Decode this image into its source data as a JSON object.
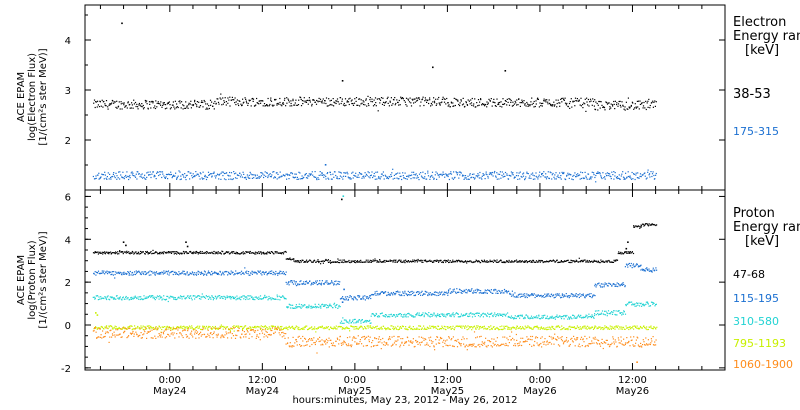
{
  "chart_data": [
    {
      "type": "scatter",
      "panel": "electron",
      "ylabel_lines": [
        "ACE EPAM",
        "log(Electron Flux)",
        "[1/(cm²s ster MeV)]"
      ],
      "yticks": [
        2,
        3,
        4
      ],
      "ylim": [
        1.0,
        4.7
      ],
      "legend_title_lines": [
        "Electron",
        "Energy ran",
        "[keV]"
      ],
      "series": [
        {
          "name": "38-53",
          "color": "#000000",
          "base": 2.75,
          "noise": 0.09,
          "segments": [
            [
              -10,
              6,
              2.72
            ],
            [
              6,
              36,
              2.78
            ],
            [
              36,
              55,
              2.76
            ],
            [
              55,
              63,
              2.7
            ]
          ],
          "outliers": [
            [
              -6.3,
              4.35
            ],
            [
              22.3,
              3.2
            ],
            [
              34.0,
              3.47
            ],
            [
              43.4,
              3.4
            ]
          ]
        },
        {
          "name": "175-315",
          "color": "#1a6fd1",
          "base": 1.3,
          "noise": 0.08,
          "segments": [
            [
              -10,
              63,
              1.3
            ]
          ],
          "outliers": [
            [
              20.1,
              1.52
            ]
          ]
        }
      ]
    },
    {
      "type": "scatter",
      "panel": "proton",
      "ylabel_lines": [
        "ACE EPAM",
        "log(Proton Flux)",
        "[1/(cm²s ster MeV)]"
      ],
      "yticks": [
        -2,
        0,
        2,
        4,
        6
      ],
      "ylim": [
        -2.1,
        6.3
      ],
      "legend_title_lines": [
        "Proton",
        "Energy ran",
        "[keV]"
      ],
      "series": [
        {
          "name": "47-68",
          "color": "#000000",
          "noise": 0.06,
          "segments": [
            [
              -10,
              15,
              3.4
            ],
            [
              15,
              16,
              3.1
            ],
            [
              16,
              58,
              3.0
            ],
            [
              58,
              60,
              3.4
            ],
            [
              60,
              61,
              4.6
            ],
            [
              61,
              63,
              4.7
            ]
          ],
          "outliers": [
            [
              -6.1,
              3.9
            ],
            [
              -5.8,
              3.75
            ],
            [
              2.0,
              3.9
            ],
            [
              2.2,
              3.7
            ],
            [
              22.2,
              5.9
            ],
            [
              59.3,
              3.9
            ],
            [
              59.1,
              3.6
            ]
          ]
        },
        {
          "name": "115-195",
          "color": "#1a6fd1",
          "noise": 0.1,
          "segments": [
            [
              -10,
              15,
              2.45
            ],
            [
              15,
              22,
              2.0
            ],
            [
              22,
              26,
              1.3
            ],
            [
              26,
              36,
              1.5
            ],
            [
              36,
              44,
              1.6
            ],
            [
              44,
              55,
              1.4
            ],
            [
              55,
              59,
              1.9
            ],
            [
              59,
              61,
              2.8
            ],
            [
              61,
              63,
              2.6
            ]
          ],
          "outliers": [
            [
              22.3,
              1.1
            ],
            [
              22.5,
              1.7
            ]
          ]
        },
        {
          "name": "310-580",
          "color": "#22d3d3",
          "noise": 0.1,
          "segments": [
            [
              -10,
              15,
              1.3
            ],
            [
              15,
              22,
              0.9
            ],
            [
              22,
              26,
              0.2
            ],
            [
              26,
              44,
              0.5
            ],
            [
              44,
              55,
              0.4
            ],
            [
              55,
              59,
              0.6
            ],
            [
              59,
              63,
              1.0
            ]
          ],
          "outliers": [
            [
              22.4,
              6.05
            ]
          ]
        },
        {
          "name": "795-1193",
          "color": "#c8f000",
          "noise": 0.09,
          "segments": [
            [
              -10,
              63,
              -0.1
            ]
          ],
          "outliers": [
            [
              -9.7,
              0.6
            ],
            [
              -9.5,
              0.5
            ]
          ]
        },
        {
          "name": "1060-1900",
          "color": "#ff8c1a",
          "noise": 0.25,
          "segments": [
            [
              -10,
              15,
              -0.35
            ],
            [
              15,
              63,
              -0.75
            ]
          ],
          "outliers": [
            [
              -9.8,
              -0.1
            ],
            [
              60.5,
              -1.7
            ]
          ]
        }
      ]
    }
  ],
  "xaxis": {
    "xlim": [
      -11,
      72
    ],
    "major_ticks": [
      0,
      12,
      24,
      36,
      48,
      60
    ],
    "tick_labels": [
      {
        "time": "0:00",
        "date": "May24"
      },
      {
        "time": "12:00",
        "date": "May24"
      },
      {
        "time": "0:00",
        "date": "May25"
      },
      {
        "time": "12:00",
        "date": "May25"
      },
      {
        "time": "0:00",
        "date": "May26"
      },
      {
        "time": "12:00",
        "date": "May26"
      }
    ],
    "xlabel": "hours:minutes, May 23, 2012 - May 26, 2012"
  }
}
